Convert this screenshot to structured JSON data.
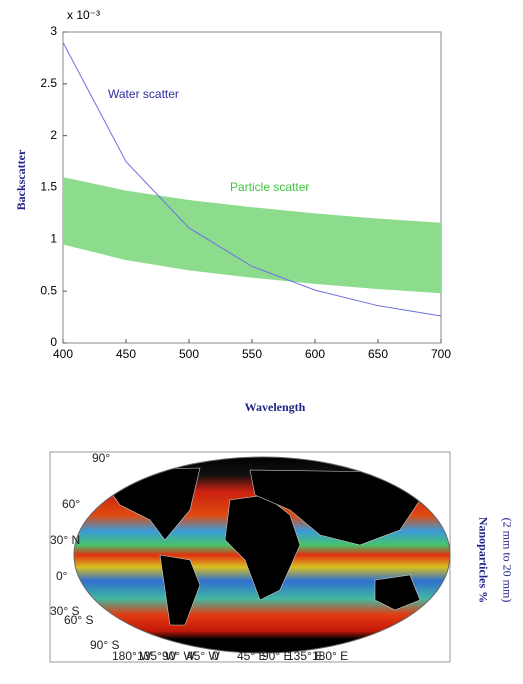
{
  "chart_data": {
    "type": "line",
    "multiplier": "x 10⁻³",
    "x_label": "Wavelength",
    "y_label": "Backscatter",
    "x": [
      400,
      450,
      500,
      550,
      600,
      650,
      700
    ],
    "series": [
      {
        "name": "Water scatter",
        "color": "#2e2e9c",
        "line_color": "#7070e0",
        "values": [
          2.9,
          1.75,
          1.11,
          0.74,
          0.51,
          0.36,
          0.26
        ]
      },
      {
        "name": "Particle scatter",
        "color": "#3fc43f",
        "fill": "#8ddc8d",
        "lower": [
          0.95,
          0.8,
          0.7,
          0.63,
          0.57,
          0.52,
          0.48
        ],
        "upper": [
          1.6,
          1.47,
          1.38,
          1.31,
          1.25,
          1.2,
          1.16
        ]
      }
    ],
    "xlim": [
      400,
      700
    ],
    "xticks": [
      400,
      450,
      500,
      550,
      600,
      650,
      700
    ],
    "ylim": [
      0,
      3
    ],
    "yticks": [
      0,
      0.5,
      1,
      1.5,
      2,
      2.5,
      3
    ]
  },
  "map": {
    "lat_labels": [
      "90°",
      "60°",
      "30° N",
      "0°",
      "30° S",
      "60° S",
      "90° S"
    ],
    "lon_labels": [
      "180° W",
      "135° W",
      "90° W",
      "45° W",
      "0",
      "45° E",
      "90° E",
      "135° E",
      "180° E"
    ],
    "side_title": "Nanoparticles %",
    "side_subtitle": "(2 mm to 20 mm)"
  }
}
